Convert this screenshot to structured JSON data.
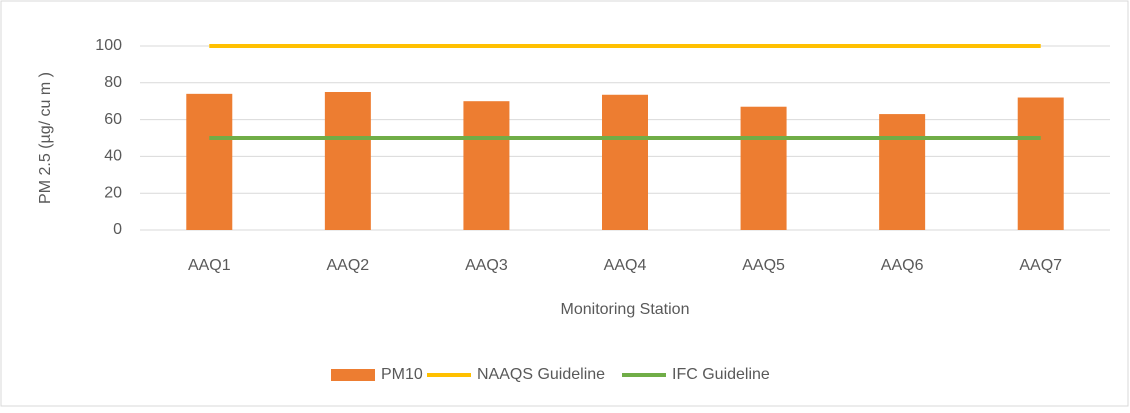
{
  "chart_data": {
    "type": "bar",
    "y_label": "PM 2.5 (µg/ cu m )",
    "x_label": "Monitoring Station",
    "categories": [
      "AAQ1",
      "AAQ2",
      "AAQ3",
      "AAQ4",
      "AAQ5",
      "AAQ6",
      "AAQ7"
    ],
    "series": [
      {
        "name": "PM10",
        "type": "bar",
        "color": "#ed7d31",
        "values": [
          74,
          75,
          70,
          73.5,
          67,
          63,
          72
        ]
      },
      {
        "name": "NAAQS Guideline",
        "type": "line",
        "color": "#ffc000",
        "values": [
          100,
          100,
          100,
          100,
          100,
          100,
          100
        ]
      },
      {
        "name": "IFC Guideline",
        "type": "line",
        "color": "#70ad47",
        "values": [
          50,
          50,
          50,
          50,
          50,
          50,
          50
        ]
      }
    ],
    "ylim": [
      0,
      100
    ],
    "yticks": [
      0,
      20,
      40,
      60,
      80,
      100
    ],
    "grid": true,
    "legend": "bottom"
  }
}
